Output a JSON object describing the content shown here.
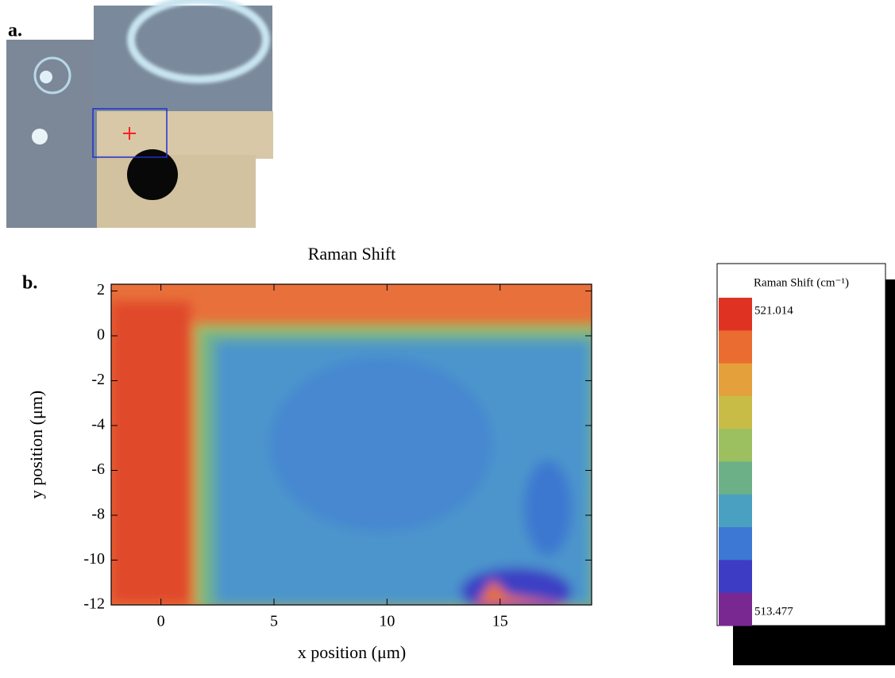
{
  "panel_a_label": "a.",
  "chart_data": {
    "type": "heatmap",
    "panel_label": "b.",
    "title": "Raman Shift",
    "x_label": "x position (μm)",
    "y_label": "y position (μm)",
    "xlim": [
      -2.2,
      19.05
    ],
    "ylim": [
      -12,
      2.3
    ],
    "xticks": [
      0,
      5,
      10,
      15
    ],
    "yticks": [
      2,
      0,
      -2,
      -4,
      -6,
      -8,
      -10,
      -12
    ],
    "colorbar": {
      "title": "Raman Shift (cm⁻¹)",
      "max": 521.014,
      "min": 513.477,
      "colors": [
        "#e03222",
        "#ea6c30",
        "#e4a03a",
        "#c8bc46",
        "#9cc060",
        "#6cb088",
        "#4aa0c0",
        "#3c78d4",
        "#3c3cc4",
        "#782890"
      ]
    }
  }
}
